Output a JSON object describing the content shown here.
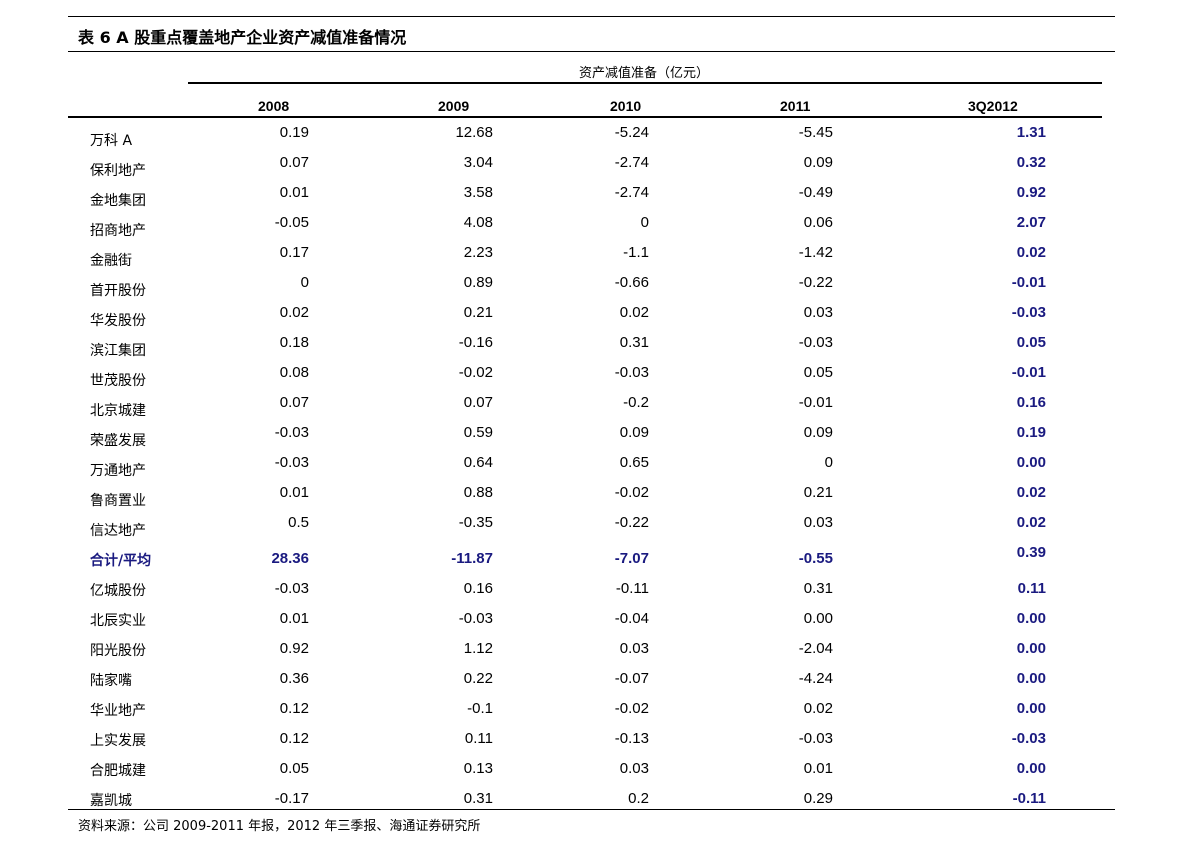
{
  "title": "表 6 A 股重点覆盖地产企业资产减值准备情况",
  "group_header": "资产减值准备（亿元）",
  "years": [
    "2008",
    "2009",
    "2010",
    "2011",
    "3Q2012"
  ],
  "rows": [
    {
      "name": "万科 A",
      "values": [
        "0.19",
        "12.68",
        "-5.24",
        "-5.45",
        "1.31"
      ]
    },
    {
      "name": "保利地产",
      "values": [
        "0.07",
        "3.04",
        "-2.74",
        "0.09",
        "0.32"
      ]
    },
    {
      "name": "金地集团",
      "values": [
        "0.01",
        "3.58",
        "-2.74",
        "-0.49",
        "0.92"
      ]
    },
    {
      "name": "招商地产",
      "values": [
        "-0.05",
        "4.08",
        "0",
        "0.06",
        "2.07"
      ]
    },
    {
      "name": "金融街",
      "values": [
        "0.17",
        "2.23",
        "-1.1",
        "-1.42",
        "0.02"
      ]
    },
    {
      "name": "首开股份",
      "values": [
        "0",
        "0.89",
        "-0.66",
        "-0.22",
        "-0.01"
      ]
    },
    {
      "name": "华发股份",
      "values": [
        "0.02",
        "0.21",
        "0.02",
        "0.03",
        "-0.03"
      ]
    },
    {
      "name": "滨江集团",
      "values": [
        "0.18",
        "-0.16",
        "0.31",
        "-0.03",
        "0.05"
      ]
    },
    {
      "name": "世茂股份",
      "values": [
        "0.08",
        "-0.02",
        "-0.03",
        "0.05",
        "-0.01"
      ]
    },
    {
      "name": "北京城建",
      "values": [
        "0.07",
        "0.07",
        "-0.2",
        "-0.01",
        "0.16"
      ]
    },
    {
      "name": "荣盛发展",
      "values": [
        "-0.03",
        "0.59",
        "0.09",
        "0.09",
        "0.19"
      ]
    },
    {
      "name": "万通地产",
      "values": [
        "-0.03",
        "0.64",
        "0.65",
        "0",
        "0.00"
      ]
    },
    {
      "name": "鲁商置业",
      "values": [
        "0.01",
        "0.88",
        "-0.02",
        "0.21",
        "0.02"
      ]
    },
    {
      "name": "信达地产",
      "values": [
        "0.5",
        "-0.35",
        "-0.22",
        "0.03",
        "0.02"
      ]
    },
    {
      "name": "合计/平均",
      "values": [
        "28.36",
        "-11.87",
        "-7.07",
        "-0.55",
        "0.39"
      ],
      "total": true
    },
    {
      "name": "亿城股份",
      "values": [
        "-0.03",
        "0.16",
        "-0.11",
        "0.31",
        "0.11"
      ]
    },
    {
      "name": "北辰实业",
      "values": [
        "0.01",
        "-0.03",
        "-0.04",
        "0.00",
        "0.00"
      ]
    },
    {
      "name": "阳光股份",
      "values": [
        "0.92",
        "1.12",
        "0.03",
        "-2.04",
        "0.00"
      ]
    },
    {
      "name": "陆家嘴",
      "values": [
        "0.36",
        "0.22",
        "-0.07",
        "-4.24",
        "0.00"
      ]
    },
    {
      "name": "华业地产",
      "values": [
        "0.12",
        "-0.1",
        "-0.02",
        "0.02",
        "0.00"
      ]
    },
    {
      "name": "上实发展",
      "values": [
        "0.12",
        "0.11",
        "-0.13",
        "-0.03",
        "-0.03"
      ]
    },
    {
      "name": "合肥城建",
      "values": [
        "0.05",
        "0.13",
        "0.03",
        "0.01",
        "0.00"
      ]
    },
    {
      "name": "嘉凯城",
      "values": [
        "-0.17",
        "0.31",
        "0.2",
        "0.29",
        "-0.11"
      ]
    }
  ],
  "source": "资料来源：公司 2009-2011 年报，2012 年三季报、海通证券研究所"
}
